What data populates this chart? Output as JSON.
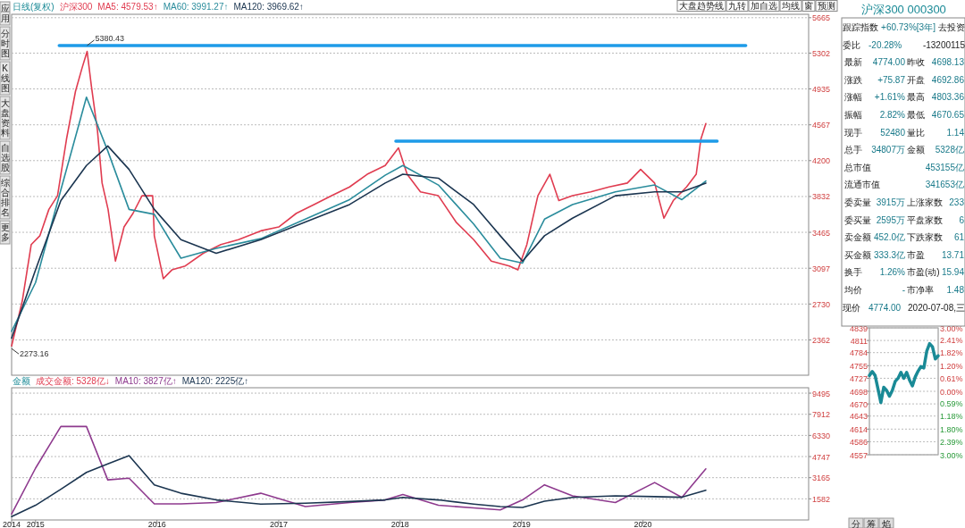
{
  "chart_data": [
    {
      "type": "line",
      "title": "沪深300",
      "annotations": [
        "日线(复权)",
        {
          "text": "5380.43",
          "x": "2015-06-05",
          "y": 5380.43
        },
        {
          "text": "2273.16",
          "x": "2014-10-21",
          "y": 2273.16
        }
      ],
      "xlim": [
        "2014-10-21",
        "2021-05-13"
      ],
      "ylim": [
        2000,
        5700
      ],
      "yticks": [
        2362,
        2730,
        3097,
        3465,
        3832,
        4200,
        4567,
        4935,
        5302,
        5665
      ],
      "tick_labels": "y",
      "grid": "y",
      "legend": "top left",
      "series": [
        {
          "name": "MA5: 4579.53↑",
          "color": "#e03c50",
          "x": [
            "2014-10-21",
            "2014-11-22",
            "2014-12-19",
            "2015-01-14",
            "2015-02-10",
            "2015-03-08",
            "2015-04-04",
            "2015-05-01",
            "2015-05-20",
            "2015-06-05",
            "2015-06-18",
            "2015-07-06",
            "2015-07-20",
            "2015-08-07",
            "2015-08-29",
            "2015-09-24",
            "2015-10-21",
            "2015-11-17",
            "2015-12-19",
            "2015-12-24",
            "2016-01-20",
            "2016-02-15",
            "2016-03-26",
            "2016-05-19",
            "2016-07-11",
            "2016-09-02",
            "2016-11-08",
            "2017-01-01",
            "2017-02-23",
            "2017-04-17",
            "2017-06-09",
            "2017-08-02",
            "2017-09-24",
            "2017-11-17",
            "2017-12-27",
            "2018-01-22",
            "2018-03-03",
            "2018-04-26",
            "2018-06-18",
            "2018-08-10",
            "2018-10-02",
            "2018-11-25",
            "2018-12-21",
            "2019-01-17",
            "2019-02-19",
            "2019-03-27",
            "2019-04-23",
            "2019-06-03",
            "2019-07-28",
            "2019-09-21",
            "2019-11-15",
            "2019-12-25",
            "2020-02-05",
            "2020-03-04",
            "2020-04-01",
            "2020-05-11",
            "2020-06-09",
            "2020-06-23",
            "2020-07-08"
          ],
          "values": [
            2300,
            2760,
            3340,
            3430,
            3700,
            3840,
            4420,
            4910,
            5140,
            5320,
            4960,
            4510,
            3970,
            3700,
            3170,
            3520,
            3660,
            3840,
            3840,
            3430,
            2990,
            3080,
            3120,
            3250,
            3340,
            3390,
            3480,
            3520,
            3660,
            3750,
            3840,
            3930,
            4060,
            4150,
            4330,
            4060,
            3880,
            3840,
            3570,
            3390,
            3170,
            3120,
            3080,
            3340,
            3840,
            4060,
            3790,
            3840,
            3880,
            3930,
            3970,
            4110,
            3970,
            3610,
            3790,
            3930,
            4060,
            4420,
            4579.53
          ]
        },
        {
          "name": "MA60: 3991.27↑",
          "color": "#2a8c9c",
          "x": [
            "2014-10-21",
            "2015-01-01",
            "2015-03-18",
            "2015-06-03",
            "2015-08-06",
            "2015-10-09",
            "2015-12-24",
            "2016-03-13",
            "2016-06-27",
            "2016-11-08",
            "2017-03-22",
            "2017-08-02",
            "2017-11-17",
            "2018-01-09",
            "2018-04-26",
            "2018-08-10",
            "2018-10-29",
            "2019-01-04",
            "2019-03-11",
            "2019-06-03",
            "2019-10-10",
            "2020-02-05",
            "2020-04-27",
            "2020-07-08"
          ],
          "values": [
            2450,
            2950,
            3900,
            4850,
            4300,
            3700,
            3650,
            3200,
            3300,
            3400,
            3600,
            3800,
            4050,
            4150,
            3950,
            3550,
            3200,
            3150,
            3600,
            3750,
            3880,
            3950,
            3800,
            3991.27
          ]
        },
        {
          "name": "MA120: 3969.62↑",
          "color": "#1b3550",
          "x": [
            "2014-10-21",
            "2015-01-01",
            "2015-03-18",
            "2015-06-03",
            "2015-08-06",
            "2015-10-09",
            "2015-12-24",
            "2016-03-13",
            "2016-06-27",
            "2016-11-08",
            "2017-03-22",
            "2017-08-02",
            "2017-11-17",
            "2018-01-09",
            "2018-04-26",
            "2018-08-10",
            "2018-10-29",
            "2019-01-04",
            "2019-03-11",
            "2019-06-03",
            "2019-10-10",
            "2020-02-05",
            "2020-04-27",
            "2020-07-08"
          ],
          "values": [
            2380,
            3080,
            3790,
            4150,
            4350,
            4110,
            3700,
            3390,
            3250,
            3390,
            3570,
            3750,
            3970,
            4060,
            4020,
            3750,
            3430,
            3170,
            3430,
            3610,
            3840,
            3880,
            3880,
            3969.62
          ]
        },
        {
          "color": "#1e9be8",
          "x": [
            "2015-03-13",
            "2020-11-05"
          ],
          "values": [
            5380.43,
            5380.43
          ]
        },
        {
          "color": "#1e9be8",
          "x": [
            "2017-12-19",
            "2020-08-11"
          ],
          "values": [
            4400,
            4400
          ]
        }
      ]
    },
    {
      "type": "line",
      "title": "成交金额: 5328亿↓",
      "annotations": [
        "金额"
      ],
      "x": [
        "2014-10-21",
        "2015-01-01",
        "2015-03-18",
        "2015-06-03",
        "2015-08-06",
        "2015-10-09",
        "2015-12-24",
        "2016-03-13",
        "2016-06-27",
        "2016-11-08",
        "2017-03-22",
        "2017-08-02",
        "2017-11-17",
        "2018-01-09",
        "2018-04-26",
        "2018-08-10",
        "2018-10-29",
        "2019-01-04",
        "2019-03-11",
        "2019-06-03",
        "2019-10-10",
        "2020-02-05",
        "2020-04-27",
        "2020-07-08"
      ],
      "xlim": [
        "2014-10-21",
        "2021-05-13"
      ],
      "xticks": [
        {
          "value": "2014-10-21",
          "label": "2014"
        },
        {
          "value": "2015-01-01",
          "label": "2015"
        },
        {
          "value": "2016-01-01",
          "label": "2016"
        },
        {
          "value": "2017-01-01",
          "label": "2017"
        },
        {
          "value": "2018-01-01",
          "label": "2018"
        },
        {
          "value": "2019-01-01",
          "label": "2019"
        },
        {
          "value": "2020-01-01",
          "label": "2020"
        }
      ],
      "ylim": [
        0,
        9900
      ],
      "yticks": [
        1582,
        3165,
        4747,
        6330,
        7912,
        9495
      ],
      "grid": "y",
      "legend": "top left",
      "series": [
        {
          "name": "MA10: 3827亿↑",
          "color": "#8e3a8e",
          "values": [
            440,
            3880,
            7000,
            7000,
            3000,
            3130,
            1200,
            1200,
            1300,
            2000,
            1000,
            1300,
            1500,
            1900,
            1100,
            900,
            750,
            1500,
            2630,
            1810,
            1300,
            2800,
            1690,
            3827
          ]
        },
        {
          "name": "MA120: 2225亿↑",
          "color": "#1b3550",
          "values": [
            250,
            1100,
            2300,
            3560,
            4200,
            4810,
            2630,
            2000,
            1500,
            1190,
            1250,
            1380,
            1500,
            1690,
            1500,
            1190,
            1000,
            940,
            1400,
            1690,
            1810,
            1750,
            1700,
            2225
          ]
        }
      ]
    },
    {
      "type": "line",
      "categories": [
        null,
        null,
        null,
        null,
        null,
        null,
        null,
        null,
        null,
        null,
        null,
        null,
        null,
        null,
        null,
        null,
        null,
        null,
        null,
        null,
        null,
        null,
        null,
        null,
        null
      ],
      "ylim": [
        4557,
        4839
      ],
      "yticks": [
        4557,
        4586,
        4614,
        4643,
        4670,
        4698,
        4727,
        4755,
        4784,
        4811,
        4839
      ],
      "y2lim": [
        -3,
        3
      ],
      "y2ticks": [
        {
          "value": 3,
          "label": "3.00%"
        },
        {
          "value": 2.41,
          "label": "2.41%"
        },
        {
          "value": 1.82,
          "label": "1.82%"
        },
        {
          "value": 1.2,
          "label": "1.20%"
        },
        {
          "value": 0.61,
          "label": "0.61%"
        },
        {
          "value": 0,
          "label": "0.00%"
        },
        {
          "value": -0.59,
          "label": "0.59%"
        },
        {
          "value": -1.18,
          "label": "1.18%"
        },
        {
          "value": -1.8,
          "label": "1.80%"
        },
        {
          "value": -2.39,
          "label": "2.39%"
        },
        {
          "value": -3,
          "label": "3.00%"
        }
      ],
      "grid": "y",
      "series": [
        {
          "color": "#1a8a96",
          "values": [
            4733,
            4742,
            4733,
            4703,
            4673,
            4707,
            4700,
            4687,
            4700,
            4720,
            4727,
            4740,
            4727,
            4740,
            4723,
            4710,
            4730,
            4743,
            4753,
            4750,
            4787,
            4804,
            4797,
            4770,
            4777
          ]
        }
      ]
    },
    {
      "type": "other",
      "title": "沪深300 000300",
      "annotations": [
        "跟踪指数 +60.73%[3年] 去投资",
        "委比 -20.28% -13200115",
        "最新 4774.00 昨收 4698.13",
        "涨跌 +75.87 开盘 4692.86",
        "涨幅 +1.61% 最高 4803.36",
        "振幅 2.82% 最低 4670.65",
        "现手 52480 量比 1.14",
        "总手 34807万 金额 5328亿",
        "总市值 453155亿",
        "流通市值 341653亿",
        "委卖量 3915万 上涨家数 233",
        "委买量 2595万 平盘家数 6",
        "卖金额 452.0亿 下跌家数 61",
        "买金额 333.3亿 市盈 13.71",
        "换手 1.26% 市盈(动) 15.94",
        "均价 - 市净率 1.48",
        "现价 4774.00 2020-07-08,三"
      ]
    },
    {
      "type": "other",
      "annotations": [
        "应用",
        "分时图",
        "K线图",
        "大盘资料",
        "自选股",
        "综合排名",
        "更多"
      ]
    },
    {
      "type": "other",
      "annotations": [
        "大盘趋势线",
        "九转",
        "加自选",
        "均线",
        "窗",
        "预测"
      ]
    },
    {
      "type": "other",
      "annotations": [
        "分",
        "筹",
        "焰"
      ]
    }
  ]
}
